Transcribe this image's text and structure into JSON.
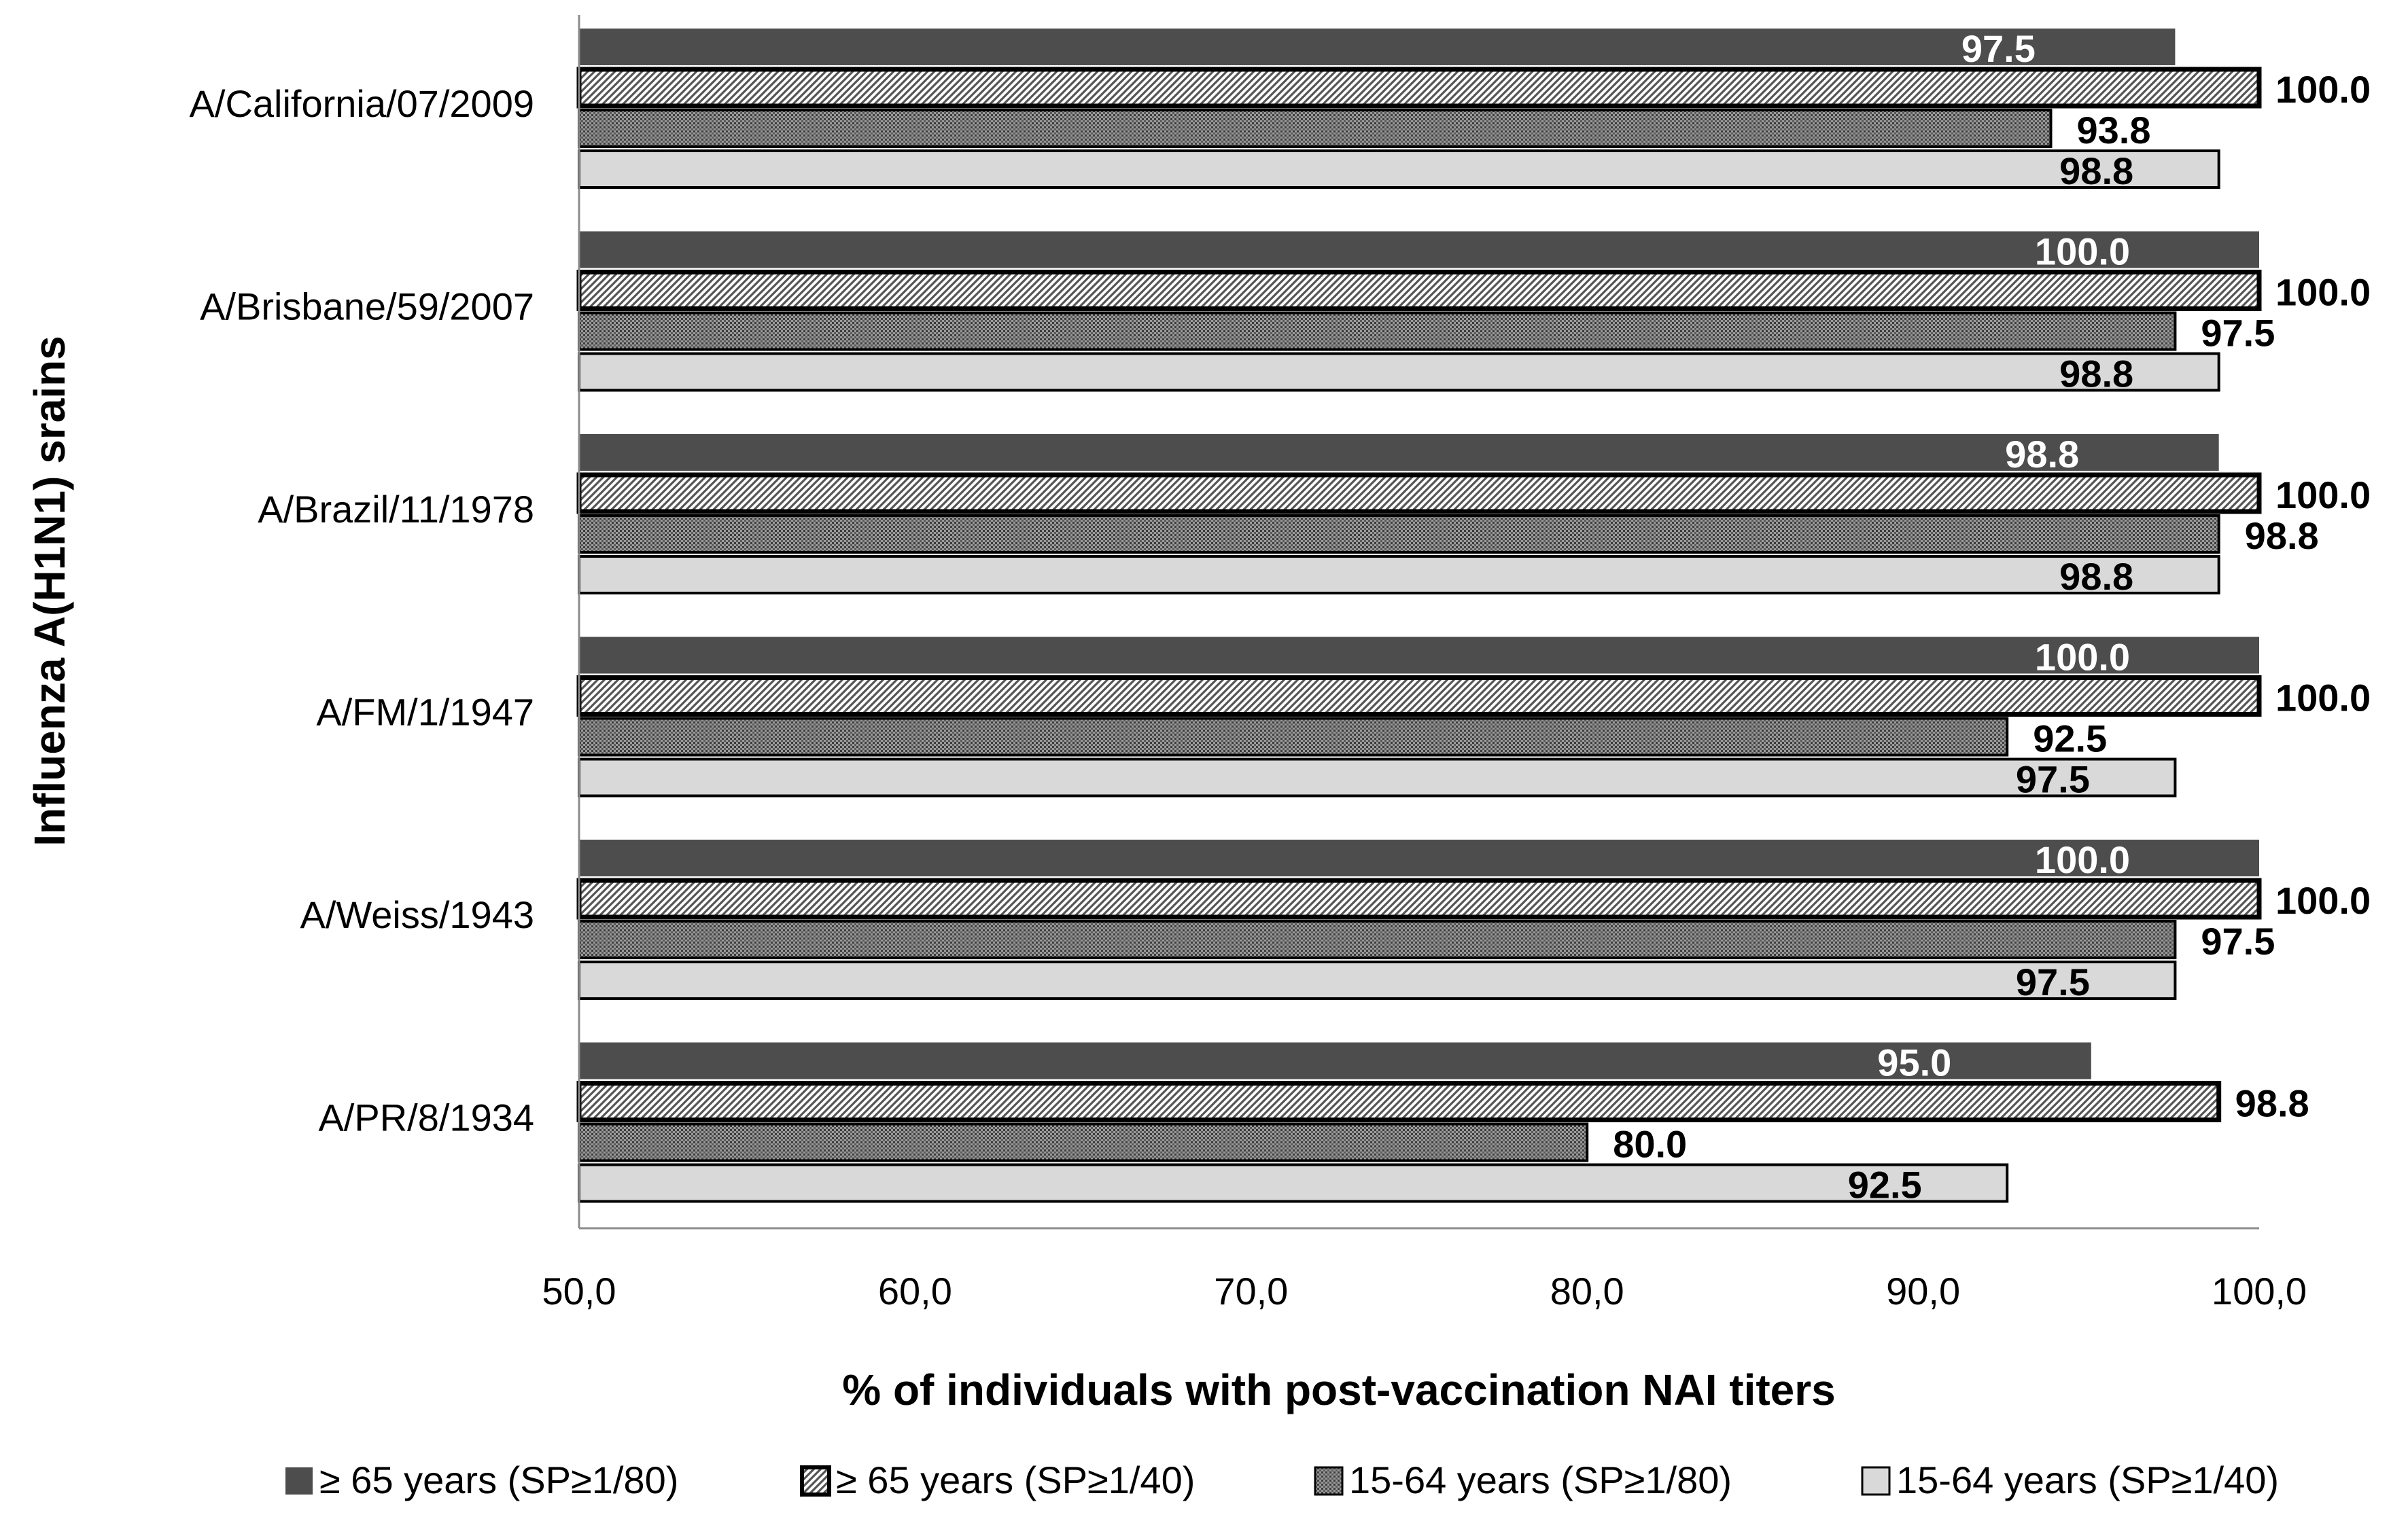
{
  "chart_data": {
    "type": "bar",
    "orientation": "horizontal",
    "title": "",
    "xlabel": "% of individuals with post-vaccination NAI titers",
    "ylabel": "Influenza A(H1N1) srains",
    "xlim": [
      50,
      100
    ],
    "xticks": [
      50,
      60,
      70,
      80,
      90,
      100
    ],
    "xtick_labels": [
      "50,0",
      "60,0",
      "70,0",
      "80,0",
      "90,0",
      "100,0"
    ],
    "categories": [
      "A/California/07/2009",
      "A/Brisbane/59/2007",
      "A/Brazil/11/1978",
      "A/FM/1/1947",
      "A/Weiss/1943",
      "A/PR/8/1934"
    ],
    "series": [
      {
        "name": "≥ 65 years (SP≥1/80)",
        "values": [
          97.5,
          100.0,
          98.8,
          100.0,
          100.0,
          95.0
        ],
        "labels": [
          "97.5",
          "100.0",
          "98.8",
          "100.0",
          "100.0",
          "95.0"
        ],
        "fill": "solid",
        "color": "#4d4d4d"
      },
      {
        "name": "≥ 65 years (SP≥1/40)",
        "values": [
          100.0,
          100.0,
          100.0,
          100.0,
          100.0,
          98.8
        ],
        "labels": [
          "100.0",
          "100.0",
          "100.0",
          "100.0",
          "100.0",
          "98.8"
        ],
        "fill": "diagonal-hatch",
        "color": "#ffffff"
      },
      {
        "name": "15-64 years (SP≥1/80)",
        "values": [
          93.8,
          97.5,
          98.8,
          92.5,
          97.5,
          80.0
        ],
        "labels": [
          "93.8",
          "97.5",
          "98.8",
          "92.5",
          "97.5",
          "80.0"
        ],
        "fill": "dots",
        "color": "#8a8a8a"
      },
      {
        "name": "15-64 years (SP≥1/40)",
        "values": [
          98.8,
          98.8,
          98.8,
          97.5,
          97.5,
          92.5
        ],
        "labels": [
          "98.8",
          "98.8",
          "98.8",
          "97.5",
          "97.5",
          "92.5"
        ],
        "fill": "solid",
        "color": "#d9d9d9"
      }
    ],
    "legend_position": "bottom",
    "grid": false
  }
}
